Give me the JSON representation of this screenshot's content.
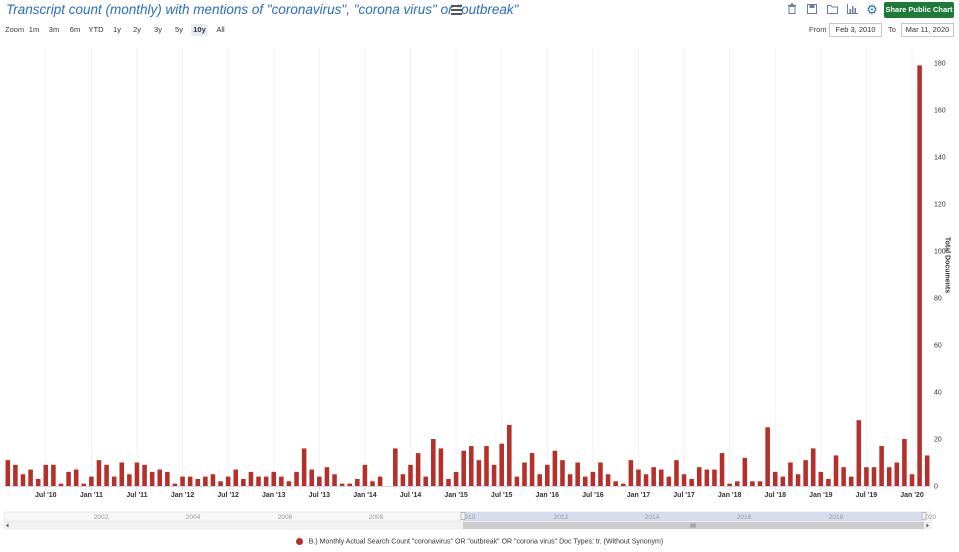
{
  "header": {
    "title": "Transcript count (monthly) with mentions of \"coronavirus\", \"corona virus\" or \"outbreak\"",
    "share_label": "Share Public Chart",
    "tool_icons": [
      "trash-icon",
      "save-icon",
      "folder-icon",
      "chart-type-icon",
      "gear-icon"
    ]
  },
  "zoom": {
    "label": "Zoom",
    "options": [
      "1m",
      "3m",
      "6m",
      "YTD",
      "1y",
      "2y",
      "3y",
      "5y",
      "10y",
      "All"
    ],
    "selected": "10y"
  },
  "range": {
    "from_label": "From",
    "from_value": "Feb 3, 2010",
    "to_label": "To",
    "to_value": "Mar 11, 2020"
  },
  "colors": {
    "bar": "#b5302a",
    "title": "#2a6ebd",
    "share_button": "#1f7a3a",
    "navigator_fill": "#cdd6e8"
  },
  "chart_data": {
    "type": "bar",
    "ylabel": "Total Documents",
    "ylim": [
      0,
      180
    ],
    "yticks": [
      0,
      20,
      40,
      60,
      80,
      100,
      120,
      140,
      160,
      180
    ],
    "xtick_labels": [
      "Jul '10",
      "Jan '11",
      "Jul '11",
      "Jan '12",
      "Jul '12",
      "Jan '13",
      "Jul '13",
      "Jan '14",
      "Jul '14",
      "Jan '15",
      "Jul '15",
      "Jan '16",
      "Jul '16",
      "Jan '17",
      "Jul '17",
      "Jan '18",
      "Jul '18",
      "Jan '19",
      "Jul '19",
      "Jan '20"
    ],
    "x_start": "2010-02",
    "x_end": "2020-03",
    "series": [
      {
        "name": "B.) Monthly Actual Search Count \"coronavirus\" OR \"outbreak\" OR \"corona virus\" Doc Types: tr. (Without Synonym)",
        "values": [
          11,
          9,
          5,
          7,
          3,
          9,
          9,
          1,
          6,
          7,
          1,
          4,
          11,
          9,
          4,
          10,
          5,
          10,
          9,
          6,
          7,
          6,
          1,
          4,
          4,
          3,
          4,
          5,
          2,
          4,
          7,
          3,
          6,
          4,
          4,
          6,
          4,
          2,
          6,
          16,
          7,
          4,
          8,
          5,
          1,
          1,
          3,
          9,
          2,
          4,
          0,
          16,
          5,
          9,
          14,
          4,
          20,
          16,
          3,
          6,
          15,
          17,
          11,
          17,
          9,
          18,
          26,
          4,
          10,
          14,
          5,
          9,
          15,
          11,
          5,
          10,
          4,
          6,
          10,
          5,
          2,
          1,
          11,
          7,
          5,
          8,
          7,
          4,
          11,
          5,
          3,
          8,
          7,
          7,
          14,
          1,
          2,
          12,
          2,
          2,
          25,
          6,
          4,
          10,
          5,
          11,
          16,
          6,
          3,
          13,
          8,
          4,
          28,
          8,
          8,
          17,
          8,
          10,
          20,
          5,
          179,
          13
        ]
      }
    ],
    "navigator": {
      "labels": [
        "2002",
        "2004",
        "2006",
        "2008",
        "2010",
        "2012",
        "2014",
        "2016",
        "2018",
        "2020"
      ],
      "range_start": "2010-02",
      "range_end": "2020-03"
    }
  }
}
